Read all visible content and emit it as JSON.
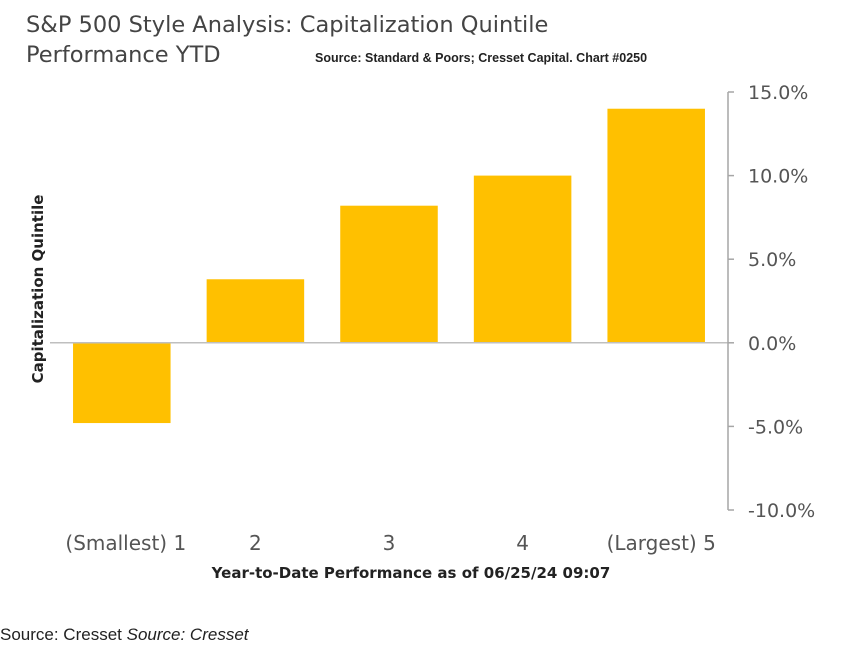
{
  "title": "S&P 500 Style Analysis: Capitalization Quintile Performance YTD",
  "source_note": "Source: Standard & Poors; Cresset Capital. Chart #0250",
  "footer": {
    "source": "Source: Cresset",
    "source_italic": "Source: Cresset"
  },
  "chart_data": {
    "type": "bar",
    "categories": [
      "(Smallest) 1",
      "2",
      "3",
      "4",
      "(Largest) 5"
    ],
    "values": [
      -4.8,
      3.8,
      8.2,
      10.0,
      14.0
    ],
    "xlabel": "Year-to-Date Performance as of 06/25/24 09:07",
    "ylabel": "Capitalization Quintile",
    "ylim": [
      -10,
      15
    ],
    "y_ticks": [
      "15.0%",
      "10.0%",
      "5.0%",
      "0.0%",
      "-5.0%",
      "-10.0%"
    ],
    "y_axis_side": "right",
    "grid": false,
    "bar_color": "#FFC000"
  }
}
